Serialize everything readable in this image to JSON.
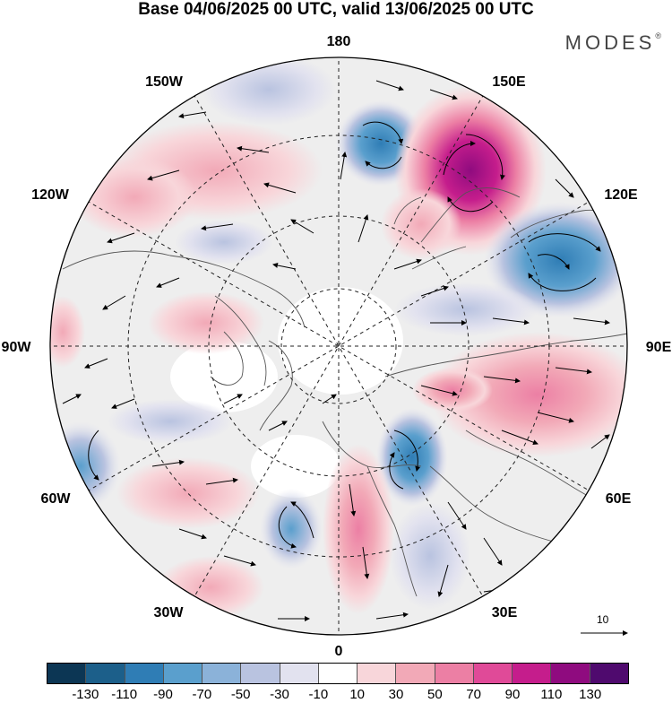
{
  "title": "Base 04/06/2025 00 UTC, valid 13/06/2025 00 UTC",
  "brand": "MODES",
  "brand_mark": "®",
  "longitude_labels": [
    {
      "text": "180",
      "id": "lon-180"
    },
    {
      "text": "150E",
      "id": "lon-150e"
    },
    {
      "text": "120E",
      "id": "lon-120e"
    },
    {
      "text": "90E",
      "id": "lon-90e"
    },
    {
      "text": "60E",
      "id": "lon-60e"
    },
    {
      "text": "30E",
      "id": "lon-30e"
    },
    {
      "text": "0",
      "id": "lon-0"
    },
    {
      "text": "30W",
      "id": "lon-30w"
    },
    {
      "text": "60W",
      "id": "lon-60w"
    },
    {
      "text": "90W",
      "id": "lon-90w"
    },
    {
      "text": "120W",
      "id": "lon-120w"
    },
    {
      "text": "150W",
      "id": "lon-150w"
    }
  ],
  "vector_scale_label": "10",
  "colorbar": {
    "colors": [
      "#0c3654",
      "#1c5f8a",
      "#2f7db5",
      "#5a9fcd",
      "#8bb2d9",
      "#b9c3e0",
      "#e2e2ef",
      "#ffffff",
      "#f8d6da",
      "#f2a9b7",
      "#ec7fa4",
      "#e04a98",
      "#c51d8c",
      "#8f0b7f",
      "#4f0a6e"
    ],
    "ticks": [
      "-130",
      "-110",
      "-90",
      "-70",
      "-50",
      "-30",
      "-10",
      "10",
      "30",
      "50",
      "70",
      "90",
      "110",
      "130"
    ]
  },
  "anomaly_centers": [
    {
      "name": "pink-max-150e",
      "sign": "positive",
      "strength": 120
    },
    {
      "name": "blue-low-120e",
      "sign": "negative",
      "strength": 70
    },
    {
      "name": "blue-low-180",
      "sign": "negative",
      "strength": 55
    },
    {
      "name": "pink-90e-60e",
      "sign": "positive",
      "strength": 45
    },
    {
      "name": "blue-low-45e",
      "sign": "negative",
      "strength": 50
    },
    {
      "name": "pink-10e",
      "sign": "positive",
      "strength": 40
    }
  ]
}
